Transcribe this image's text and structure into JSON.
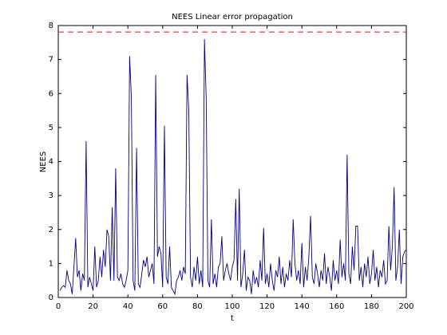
{
  "chart_data": {
    "type": "line",
    "title": "NEES Linear error propagation",
    "xlabel": "t",
    "ylabel": "NEES",
    "x": [
      1,
      2,
      3,
      4,
      5,
      6,
      7,
      8,
      9,
      10,
      11,
      12,
      13,
      14,
      15,
      16,
      17,
      18,
      19,
      20,
      21,
      22,
      23,
      24,
      25,
      26,
      27,
      28,
      29,
      30,
      31,
      32,
      33,
      34,
      35,
      36,
      37,
      38,
      39,
      40,
      41,
      42,
      43,
      44,
      45,
      46,
      47,
      48,
      49,
      50,
      51,
      52,
      53,
      54,
      55,
      56,
      57,
      58,
      59,
      60,
      61,
      62,
      63,
      64,
      65,
      66,
      67,
      68,
      69,
      70,
      71,
      72,
      73,
      74,
      75,
      76,
      77,
      78,
      79,
      80,
      81,
      82,
      83,
      84,
      85,
      86,
      87,
      88,
      89,
      90,
      91,
      92,
      93,
      94,
      95,
      96,
      97,
      98,
      99,
      100,
      101,
      102,
      103,
      104,
      105,
      106,
      107,
      108,
      109,
      110,
      111,
      112,
      113,
      114,
      115,
      116,
      117,
      118,
      119,
      120,
      121,
      122,
      123,
      124,
      125,
      126,
      127,
      128,
      129,
      130,
      131,
      132,
      133,
      134,
      135,
      136,
      137,
      138,
      139,
      140,
      141,
      142,
      143,
      144,
      145,
      146,
      147,
      148,
      149,
      150,
      151,
      152,
      153,
      154,
      155,
      156,
      157,
      158,
      159,
      160,
      161,
      162,
      163,
      164,
      165,
      166,
      167,
      168,
      169,
      170,
      171,
      172,
      173,
      174,
      175,
      176,
      177,
      178,
      179,
      180,
      181,
      182,
      183,
      184,
      185,
      186,
      187,
      188,
      189,
      190,
      191,
      192,
      193,
      194,
      195,
      196,
      197,
      198,
      199,
      200
    ],
    "series": [
      {
        "color": "#00008b",
        "values": [
          0.2,
          0.3,
          0.35,
          0.3,
          0.8,
          0.5,
          0.4,
          0.1,
          0.9,
          1.75,
          0.6,
          0.8,
          0.2,
          0.7,
          0.5,
          4.6,
          0.3,
          0.6,
          0.4,
          0.2,
          1.5,
          0.3,
          0.5,
          1.2,
          0.6,
          1.4,
          0.9,
          2.0,
          1.8,
          0.5,
          2.65,
          0.5,
          3.8,
          0.6,
          0.5,
          0.7,
          0.4,
          0.3,
          0.5,
          0.8,
          7.1,
          5.9,
          0.5,
          0.2,
          4.4,
          0.4,
          0.3,
          0.7,
          1.1,
          0.9,
          1.2,
          0.6,
          0.8,
          1.0,
          0.4,
          6.55,
          1.2,
          1.5,
          1.3,
          0.3,
          5.05,
          0.6,
          0.4,
          1.5,
          0.3,
          0.2,
          0.1,
          0.5,
          0.6,
          0.8,
          0.5,
          0.9,
          0.7,
          6.55,
          5.5,
          0.6,
          0.3,
          0.9,
          0.5,
          1.2,
          0.4,
          0.8,
          0.3,
          7.6,
          5.9,
          0.5,
          0.3,
          2.3,
          0.4,
          0.7,
          0.3,
          0.9,
          1.0,
          1.8,
          0.5,
          0.8,
          1.0,
          0.7,
          0.5,
          0.9,
          1.1,
          2.9,
          0.5,
          3.2,
          0.3,
          0.7,
          1.4,
          0.2,
          0.6,
          0.5,
          0.1,
          0.8,
          0.4,
          0.6,
          0.3,
          1.1,
          0.5,
          2.05,
          0.4,
          0.7,
          0.3,
          1.0,
          0.5,
          0.2,
          0.8,
          0.6,
          1.2,
          0.4,
          0.9,
          0.3,
          0.7,
          0.5,
          1.1,
          0.6,
          2.3,
          1.0,
          0.5,
          0.8,
          0.4,
          1.6,
          0.3,
          0.9,
          0.5,
          1.2,
          2.4,
          0.6,
          0.4,
          1.0,
          0.7,
          0.3,
          0.8,
          0.5,
          1.3,
          0.4,
          0.9,
          0.6,
          0.2,
          1.1,
          0.5,
          0.8,
          0.4,
          1.7,
          0.6,
          1.0,
          0.5,
          4.2,
          0.7,
          0.4,
          1.5,
          0.8,
          2.1,
          2.1,
          0.5,
          0.9,
          0.3,
          1.0,
          0.6,
          1.2,
          0.4,
          0.7,
          1.4,
          0.5,
          0.9,
          0.3,
          0.8,
          0.6,
          1.1,
          0.4,
          0.5,
          2.1,
          0.8,
          1.5,
          3.25,
          0.5,
          0.9,
          2.0,
          0.4,
          1.2,
          1.35,
          1.4
        ]
      }
    ],
    "threshold": {
      "value": 7.81,
      "color": "#ff0000"
    },
    "xlim": [
      0,
      200
    ],
    "xticks": [
      0,
      20,
      40,
      60,
      80,
      100,
      120,
      140,
      160,
      180,
      200
    ],
    "ylim": [
      0,
      8
    ],
    "yticks": [
      0,
      1,
      2,
      3,
      4,
      5,
      6,
      7,
      8
    ]
  }
}
